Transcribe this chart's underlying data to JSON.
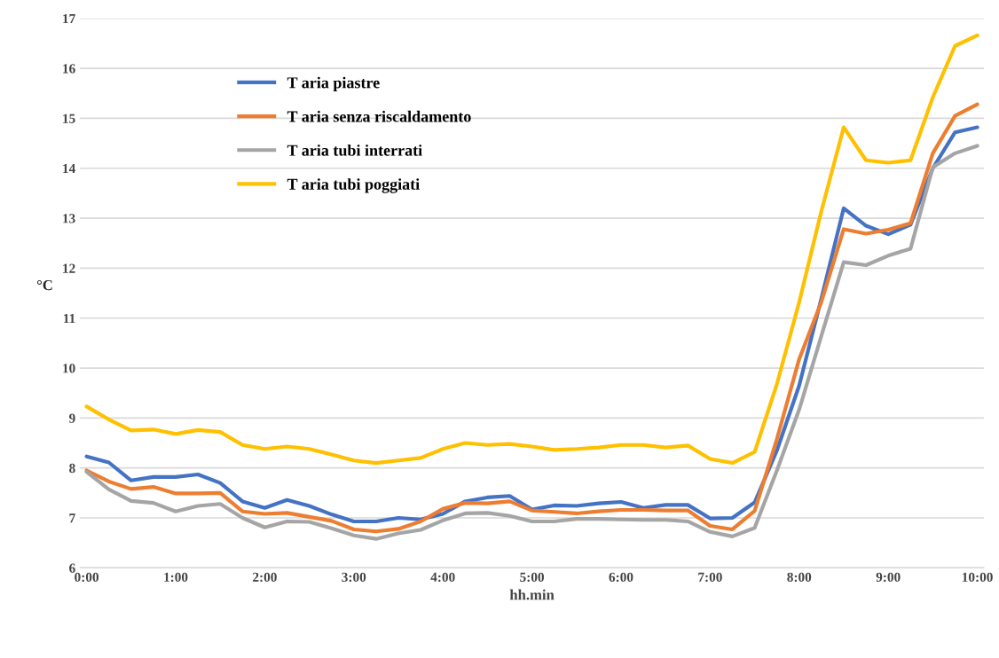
{
  "chart_data": {
    "type": "line",
    "xlabel": "hh.min",
    "ylabel": "°C",
    "categories": [
      "0:00",
      null,
      null,
      null,
      "1:00",
      null,
      null,
      null,
      "2:00",
      null,
      null,
      null,
      "3:00",
      null,
      null,
      null,
      "4:00",
      null,
      null,
      null,
      "5:00",
      null,
      null,
      null,
      "6:00",
      null,
      null,
      null,
      "7:00",
      null,
      null,
      null,
      "8:00",
      null,
      null,
      null,
      "9:00",
      null,
      null,
      null,
      "10:00"
    ],
    "ylim": [
      6,
      17
    ],
    "yticks": [
      6,
      7,
      8,
      9,
      10,
      11,
      12,
      13,
      14,
      15,
      16,
      17
    ],
    "grid": "y",
    "legend": "top left",
    "marker": "none",
    "line_style": "solid",
    "series": [
      {
        "name": "T aria piastre",
        "color": "#4472c4",
        "values": [
          8.23,
          8.11,
          7.75,
          7.82,
          7.82,
          7.87,
          7.7,
          7.33,
          7.2,
          7.36,
          7.24,
          7.07,
          6.93,
          6.93,
          7.0,
          6.97,
          7.08,
          7.33,
          7.41,
          7.44,
          7.17,
          7.25,
          7.24,
          7.29,
          7.32,
          7.2,
          7.26,
          7.26,
          6.99,
          7.0,
          7.31,
          8.35,
          9.65,
          11.4,
          13.2,
          12.85,
          12.68,
          12.87,
          14.0,
          14.72,
          14.82
        ]
      },
      {
        "name": "T aria senza riscaldamento",
        "color": "#ed7d31",
        "values": [
          7.95,
          7.73,
          7.58,
          7.62,
          7.49,
          7.49,
          7.5,
          7.13,
          7.08,
          7.1,
          7.02,
          6.94,
          6.77,
          6.73,
          6.78,
          6.93,
          7.18,
          7.3,
          7.29,
          7.33,
          7.15,
          7.12,
          7.09,
          7.13,
          7.16,
          7.16,
          7.15,
          7.15,
          6.84,
          6.77,
          7.14,
          8.58,
          10.18,
          11.33,
          12.78,
          12.69,
          12.77,
          12.9,
          14.3,
          15.05,
          15.28
        ]
      },
      {
        "name": "T aria tubi interrati",
        "color": "#a5a5a5",
        "values": [
          7.92,
          7.57,
          7.34,
          7.3,
          7.13,
          7.24,
          7.28,
          7.0,
          6.81,
          6.93,
          6.92,
          6.79,
          6.65,
          6.58,
          6.69,
          6.76,
          6.95,
          7.09,
          7.1,
          7.04,
          6.93,
          6.93,
          6.98,
          6.98,
          6.97,
          6.96,
          6.96,
          6.93,
          6.72,
          6.63,
          6.8,
          7.95,
          9.17,
          10.65,
          12.12,
          12.06,
          12.25,
          12.39,
          14.02,
          14.3,
          14.45
        ]
      },
      {
        "name": "T aria tubi poggiati",
        "color": "#ffc000",
        "values": [
          9.23,
          8.97,
          8.75,
          8.77,
          8.68,
          8.76,
          8.72,
          8.46,
          8.38,
          8.43,
          8.38,
          8.27,
          8.15,
          8.1,
          8.15,
          8.2,
          8.38,
          8.5,
          8.46,
          8.48,
          8.43,
          8.36,
          8.38,
          8.41,
          8.46,
          8.46,
          8.41,
          8.45,
          8.18,
          8.1,
          8.32,
          9.68,
          11.32,
          13.15,
          14.82,
          14.16,
          14.11,
          14.16,
          15.42,
          16.45,
          16.66
        ]
      }
    ]
  }
}
